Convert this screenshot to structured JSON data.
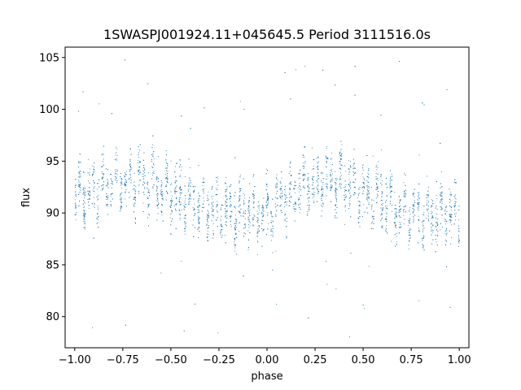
{
  "chart_data": {
    "type": "scatter",
    "title": "1SWASPJ001924.11+045645.5 Period 3111516.0s",
    "xlabel": "phase",
    "ylabel": "flux",
    "xlim": [
      -1.05,
      1.05
    ],
    "ylim": [
      77,
      106
    ],
    "grid": false,
    "legend": "none",
    "x_ticks": [
      {
        "value": -1.0,
        "label": "−1.00"
      },
      {
        "value": -0.75,
        "label": "−0.75"
      },
      {
        "value": -0.5,
        "label": "−0.50"
      },
      {
        "value": -0.25,
        "label": "−0.25"
      },
      {
        "value": 0.0,
        "label": "0.00"
      },
      {
        "value": 0.25,
        "label": "0.25"
      },
      {
        "value": 0.5,
        "label": "0.50"
      },
      {
        "value": 0.75,
        "label": "0.75"
      },
      {
        "value": 1.0,
        "label": "1.00"
      }
    ],
    "y_ticks": [
      {
        "value": 80,
        "label": "80"
      },
      {
        "value": 85,
        "label": "85"
      },
      {
        "value": 90,
        "label": "90"
      },
      {
        "value": 95,
        "label": "95"
      },
      {
        "value": 100,
        "label": "100"
      },
      {
        "value": 105,
        "label": "105"
      }
    ],
    "point_color": "#1f77b4",
    "series": [
      {
        "x": [
          -0.985,
          -0.96,
          -0.935,
          -0.91,
          -0.885,
          -0.86,
          -0.835,
          -0.81,
          -0.785,
          -0.76,
          -0.735,
          -0.71,
          -0.685,
          -0.66,
          -0.635,
          -0.61,
          -0.585,
          -0.56,
          -0.535,
          -0.51,
          -0.485,
          -0.46,
          -0.435,
          -0.41,
          -0.385,
          -0.36,
          -0.335,
          -0.31,
          -0.285,
          -0.26,
          -0.235,
          -0.21,
          -0.185,
          -0.16,
          -0.135,
          -0.11,
          -0.085,
          -0.06,
          -0.035,
          -0.01,
          0.015,
          0.04,
          0.065,
          0.09,
          0.115,
          0.14,
          0.165,
          0.19,
          0.215,
          0.24,
          0.265,
          0.29,
          0.315,
          0.34,
          0.365,
          0.39,
          0.415,
          0.44,
          0.465,
          0.49,
          0.515,
          0.54,
          0.565,
          0.59,
          0.615,
          0.64,
          0.665,
          0.69,
          0.715,
          0.74,
          0.765,
          0.79,
          0.815,
          0.84,
          0.865,
          0.89,
          0.915,
          0.94,
          0.965,
          0.99
        ],
        "y": [
          91.5,
          92.3,
          91.8,
          92.6,
          92.0,
          93.1,
          92.4,
          93.0,
          92.7,
          93.3,
          92.5,
          93.4,
          92.8,
          93.2,
          93.0,
          92.6,
          92.9,
          92.2,
          92.5,
          91.9,
          92.0,
          91.4,
          91.6,
          91.0,
          90.9,
          90.6,
          90.8,
          90.3,
          90.5,
          90.2,
          90.4,
          90.0,
          90.1,
          89.9,
          90.2,
          89.8,
          90.0,
          89.6,
          89.9,
          90.0,
          90.4,
          90.8,
          91.2,
          91.6,
          91.8,
          92.1,
          92.5,
          92.3,
          92.8,
          93.0,
          92.7,
          93.2,
          93.0,
          93.3,
          92.9,
          93.1,
          92.6,
          92.8,
          92.4,
          92.3,
          91.8,
          91.9,
          91.3,
          91.1,
          90.8,
          90.7,
          90.5,
          90.3,
          90.2,
          90.0,
          90.1,
          89.9,
          90.0,
          89.7,
          89.9,
          89.8,
          90.1,
          89.9,
          90.2,
          90.0
        ],
        "spread": 3.2,
        "outlier_range": [
          78,
          105
        ]
      }
    ]
  }
}
